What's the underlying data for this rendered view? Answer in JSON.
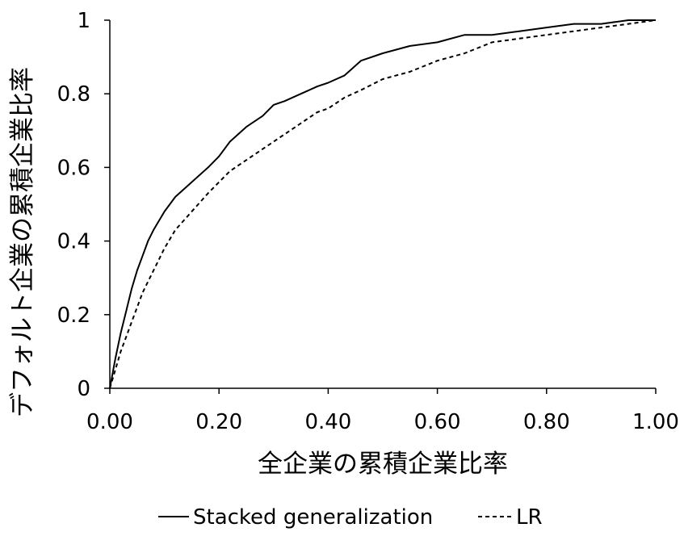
{
  "chart_data": {
    "type": "line",
    "xlabel": "全企業の累積企業比率",
    "ylabel": "デフォルト企業の累積企業比率",
    "xlim": [
      0,
      1
    ],
    "ylim": [
      0,
      1
    ],
    "x_ticks": [
      "0.00",
      "0.20",
      "0.40",
      "0.60",
      "0.80",
      "1.00"
    ],
    "y_ticks": [
      "0",
      "0.2",
      "0.4",
      "0.6",
      "0.8",
      "1"
    ],
    "grid": false,
    "legend_position": "bottom",
    "series": [
      {
        "name": "Stacked generalization",
        "style": "solid",
        "color": "#000000",
        "x": [
          0,
          0.01,
          0.02,
          0.03,
          0.04,
          0.05,
          0.06,
          0.07,
          0.08,
          0.1,
          0.12,
          0.15,
          0.18,
          0.2,
          0.22,
          0.25,
          0.28,
          0.3,
          0.32,
          0.35,
          0.38,
          0.4,
          0.43,
          0.46,
          0.5,
          0.55,
          0.6,
          0.65,
          0.7,
          0.75,
          0.8,
          0.85,
          0.9,
          0.95,
          1.0
        ],
        "y": [
          0,
          0.08,
          0.15,
          0.21,
          0.27,
          0.32,
          0.36,
          0.4,
          0.43,
          0.48,
          0.52,
          0.56,
          0.6,
          0.63,
          0.67,
          0.71,
          0.74,
          0.77,
          0.78,
          0.8,
          0.82,
          0.83,
          0.85,
          0.89,
          0.91,
          0.93,
          0.94,
          0.96,
          0.96,
          0.97,
          0.98,
          0.99,
          0.99,
          1.0,
          1.0
        ]
      },
      {
        "name": "LR",
        "style": "dashed",
        "color": "#000000",
        "x": [
          0,
          0.01,
          0.02,
          0.03,
          0.04,
          0.05,
          0.06,
          0.07,
          0.08,
          0.1,
          0.12,
          0.15,
          0.18,
          0.2,
          0.22,
          0.25,
          0.28,
          0.3,
          0.32,
          0.35,
          0.38,
          0.4,
          0.43,
          0.46,
          0.5,
          0.55,
          0.6,
          0.65,
          0.7,
          0.75,
          0.8,
          0.85,
          0.9,
          0.95,
          1.0
        ],
        "y": [
          0,
          0.05,
          0.1,
          0.14,
          0.18,
          0.22,
          0.26,
          0.29,
          0.32,
          0.38,
          0.43,
          0.48,
          0.53,
          0.56,
          0.59,
          0.62,
          0.65,
          0.67,
          0.69,
          0.72,
          0.75,
          0.76,
          0.79,
          0.81,
          0.84,
          0.86,
          0.89,
          0.91,
          0.94,
          0.95,
          0.96,
          0.97,
          0.98,
          0.99,
          1.0
        ]
      }
    ]
  }
}
